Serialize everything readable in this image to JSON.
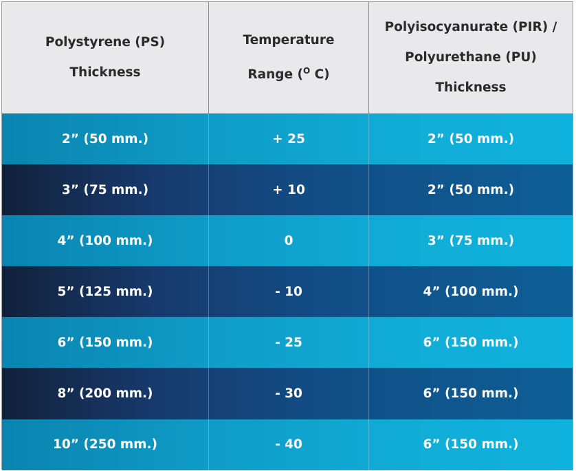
{
  "table": {
    "header": [
      {
        "lines": [
          "Polystyrene (PS)",
          "Thickness"
        ]
      },
      {
        "lines": [
          "Temperature"
        ],
        "range": {
          "before": "Range (",
          "superscript": "O",
          "after": " C)"
        }
      },
      {
        "lines": [
          "Polyisocyanurate (PIR) /",
          "Polyurethane (PU)",
          "Thickness"
        ]
      }
    ],
    "rows": [
      [
        "2” (50 mm.)",
        "+ 25",
        "2” (50 mm.)"
      ],
      [
        "3” (75 mm.)",
        "+ 10",
        "2” (50 mm.)"
      ],
      [
        "4” (100 mm.)",
        "0",
        "3” (75 mm.)"
      ],
      [
        "5” (125 mm.)",
        "- 10",
        "4” (100 mm.)"
      ],
      [
        "6” (150 mm.)",
        "- 25",
        "6” (150 mm.)"
      ],
      [
        "8” (200 mm.)",
        "- 30",
        "6” (150 mm.)"
      ],
      [
        "10” (250 mm.)",
        "- 40",
        "6” (150 mm.)"
      ]
    ]
  }
}
